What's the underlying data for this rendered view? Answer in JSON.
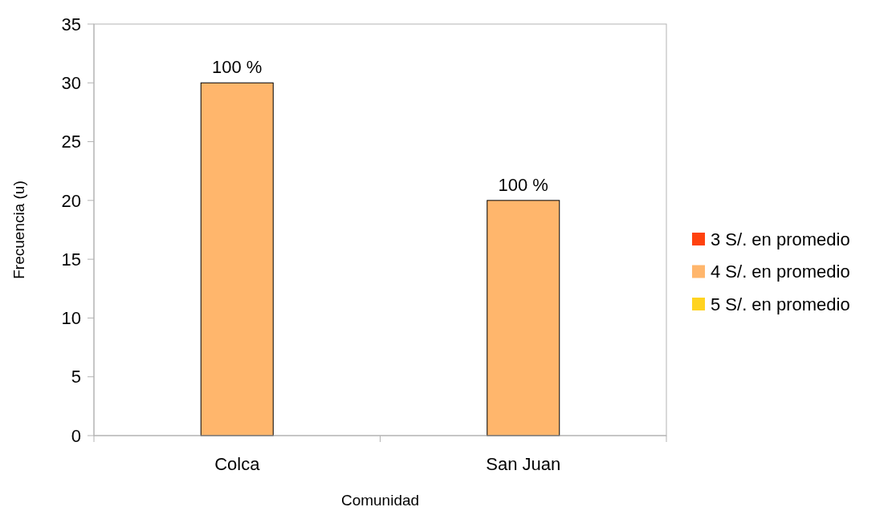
{
  "chart_data": {
    "type": "bar",
    "xlabel": "Comunidad",
    "ylabel": "Frecuencia (u)",
    "categories": [
      "Colca",
      "San Juan"
    ],
    "series": [
      {
        "name": "3 S/. en promedio",
        "color": "#ff420e",
        "values": [
          null,
          null
        ]
      },
      {
        "name": "4 S/. en promedio",
        "color": "#ffb66c",
        "values": [
          30,
          20
        ]
      },
      {
        "name": "5 S/. en promedio",
        "color": "#ffd320",
        "values": [
          null,
          null
        ]
      }
    ],
    "annotations": [
      {
        "text": "100 %",
        "x": "Colca",
        "y": 30
      },
      {
        "text": "100 %",
        "x": "San Juan",
        "y": 20
      }
    ],
    "ylim": [
      0,
      35
    ],
    "yticks": [
      0,
      5,
      10,
      15,
      20,
      25,
      30,
      35
    ],
    "grid": false,
    "legend": "right"
  }
}
